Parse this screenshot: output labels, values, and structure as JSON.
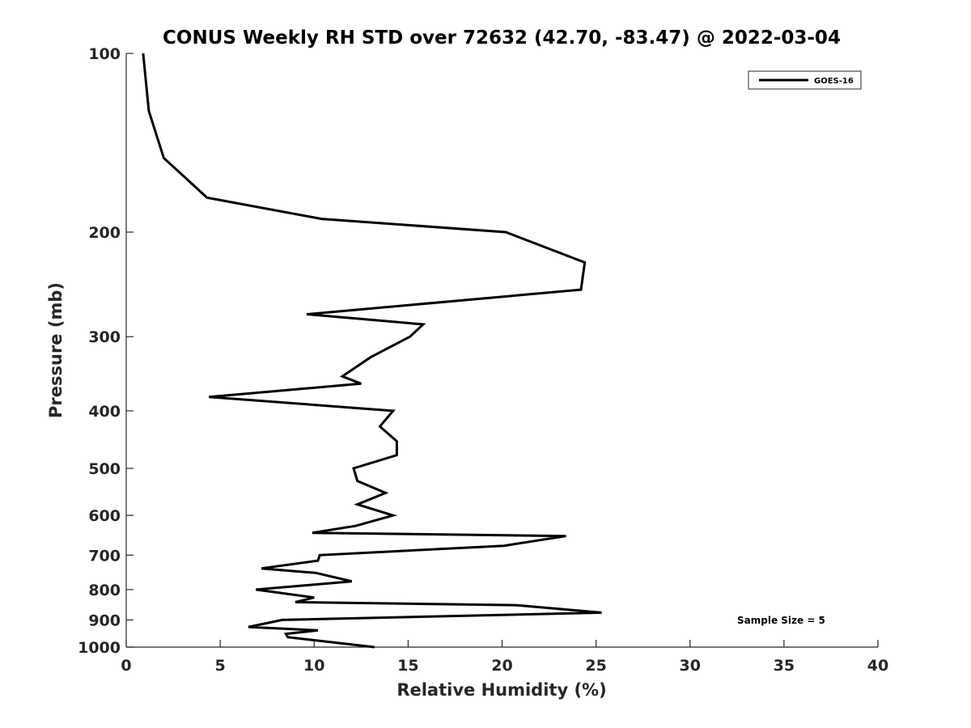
{
  "chart_data": {
    "type": "line",
    "title": "CONUS Weekly RH STD over 72632 (42.70, -83.47) @ 2022-03-04",
    "xlabel": "Relative Humidity (%)",
    "ylabel": "Pressure (mb)",
    "xlim": [
      0,
      40
    ],
    "ylim": [
      100,
      1000
    ],
    "y_scale": "log",
    "y_reversed": true,
    "x_ticks": [
      0,
      5,
      10,
      15,
      20,
      25,
      30,
      35,
      40
    ],
    "y_ticks": [
      100,
      200,
      300,
      400,
      500,
      600,
      700,
      800,
      900,
      1000
    ],
    "grid": false,
    "legend_position": "top-right",
    "annotation": "Sample Size = 5",
    "series": [
      {
        "name": "GOES-16",
        "color": "#000000",
        "points": [
          [
            0.9,
            100
          ],
          [
            1.2,
            125
          ],
          [
            2.0,
            150
          ],
          [
            4.3,
            175
          ],
          [
            10.4,
            190
          ],
          [
            20.2,
            200
          ],
          [
            24.4,
            225
          ],
          [
            24.2,
            250
          ],
          [
            9.6,
            275
          ],
          [
            15.8,
            286
          ],
          [
            15.1,
            300
          ],
          [
            13.0,
            325
          ],
          [
            11.5,
            350
          ],
          [
            12.5,
            360
          ],
          [
            4.4,
            379
          ],
          [
            14.2,
            400
          ],
          [
            13.5,
            425
          ],
          [
            14.4,
            450
          ],
          [
            14.4,
            475
          ],
          [
            12.1,
            500
          ],
          [
            12.3,
            525
          ],
          [
            13.8,
            550
          ],
          [
            12.3,
            575
          ],
          [
            14.2,
            600
          ],
          [
            12.2,
            625
          ],
          [
            9.9,
            642
          ],
          [
            23.4,
            650
          ],
          [
            20.1,
            675
          ],
          [
            10.3,
            700
          ],
          [
            10.2,
            715
          ],
          [
            7.2,
            737
          ],
          [
            10.1,
            750
          ],
          [
            12.0,
            775
          ],
          [
            6.9,
            800
          ],
          [
            10.0,
            825
          ],
          [
            9.0,
            840
          ],
          [
            20.8,
            850
          ],
          [
            25.3,
            875
          ],
          [
            8.3,
            900
          ],
          [
            6.5,
            925
          ],
          [
            10.2,
            937
          ],
          [
            8.5,
            950
          ],
          [
            8.6,
            962
          ],
          [
            13.2,
            1000
          ]
        ]
      }
    ]
  }
}
